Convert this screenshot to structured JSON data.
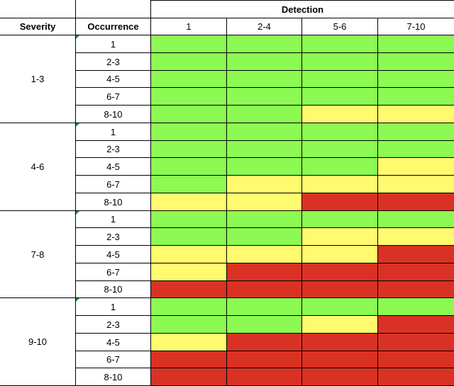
{
  "header": {
    "detection": "Detection",
    "severity": "Severity",
    "occurrence": "Occurrence",
    "detection_levels": [
      "1",
      "2-4",
      "5-6",
      "7-10"
    ]
  },
  "colors": {
    "green": "#8cfa52",
    "yellow": "#fffa6e",
    "red": "#d93224"
  },
  "groups": [
    {
      "severity": "1-3",
      "rows": [
        {
          "occurrence": "1",
          "ratings": [
            "green",
            "green",
            "green",
            "green"
          ]
        },
        {
          "occurrence": "2-3",
          "ratings": [
            "green",
            "green",
            "green",
            "green"
          ]
        },
        {
          "occurrence": "4-5",
          "ratings": [
            "green",
            "green",
            "green",
            "green"
          ]
        },
        {
          "occurrence": "6-7",
          "ratings": [
            "green",
            "green",
            "green",
            "green"
          ]
        },
        {
          "occurrence": "8-10",
          "ratings": [
            "green",
            "green",
            "yellow",
            "yellow"
          ]
        }
      ]
    },
    {
      "severity": "4-6",
      "rows": [
        {
          "occurrence": "1",
          "ratings": [
            "green",
            "green",
            "green",
            "green"
          ]
        },
        {
          "occurrence": "2-3",
          "ratings": [
            "green",
            "green",
            "green",
            "green"
          ]
        },
        {
          "occurrence": "4-5",
          "ratings": [
            "green",
            "green",
            "green",
            "yellow"
          ]
        },
        {
          "occurrence": "6-7",
          "ratings": [
            "green",
            "yellow",
            "yellow",
            "yellow"
          ]
        },
        {
          "occurrence": "8-10",
          "ratings": [
            "yellow",
            "yellow",
            "red",
            "red"
          ]
        }
      ]
    },
    {
      "severity": "7-8",
      "rows": [
        {
          "occurrence": "1",
          "ratings": [
            "green",
            "green",
            "green",
            "green"
          ]
        },
        {
          "occurrence": "2-3",
          "ratings": [
            "green",
            "green",
            "yellow",
            "yellow"
          ]
        },
        {
          "occurrence": "4-5",
          "ratings": [
            "yellow",
            "yellow",
            "yellow",
            "red"
          ]
        },
        {
          "occurrence": "6-7",
          "ratings": [
            "yellow",
            "red",
            "red",
            "red"
          ]
        },
        {
          "occurrence": "8-10",
          "ratings": [
            "red",
            "red",
            "red",
            "red"
          ]
        }
      ]
    },
    {
      "severity": "9-10",
      "rows": [
        {
          "occurrence": "1",
          "ratings": [
            "green",
            "green",
            "green",
            "green"
          ]
        },
        {
          "occurrence": "2-3",
          "ratings": [
            "green",
            "green",
            "yellow",
            "red"
          ]
        },
        {
          "occurrence": "4-5",
          "ratings": [
            "yellow",
            "red",
            "red",
            "red"
          ]
        },
        {
          "occurrence": "6-7",
          "ratings": [
            "red",
            "red",
            "red",
            "red"
          ]
        },
        {
          "occurrence": "8-10",
          "ratings": [
            "red",
            "red",
            "red",
            "red"
          ]
        }
      ]
    }
  ]
}
